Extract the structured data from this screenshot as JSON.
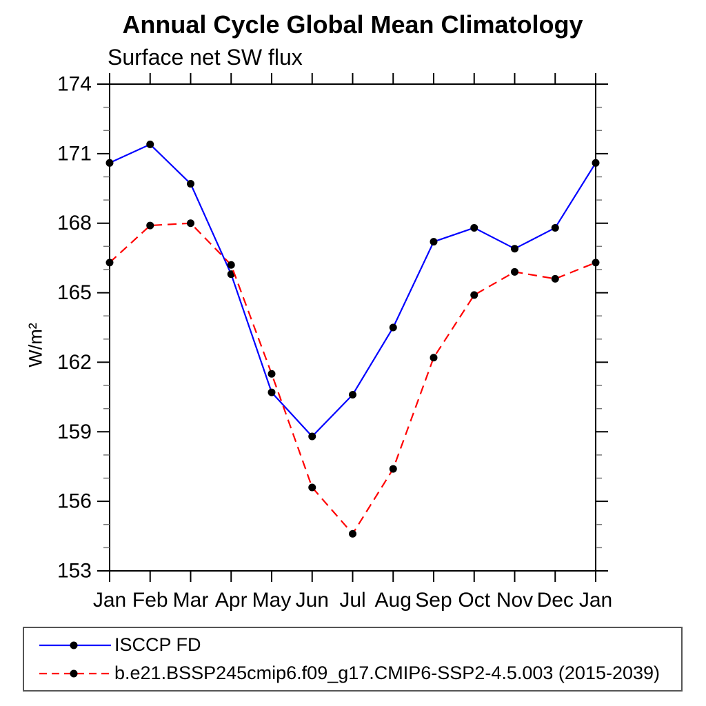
{
  "title": "Annual Cycle Global Mean Climatology",
  "subtitle": "Surface net SW flux",
  "y_axis_label": "W/m²",
  "chart_data": {
    "type": "line",
    "categories": [
      "Jan",
      "Feb",
      "Mar",
      "Apr",
      "May",
      "Jun",
      "Jul",
      "Aug",
      "Sep",
      "Oct",
      "Nov",
      "Dec",
      "Jan"
    ],
    "series": [
      {
        "name": "ISCCP FD",
        "color": "#0000ff",
        "line_style": "solid",
        "marker": "circle",
        "marker_color": "#000000",
        "values": [
          170.6,
          171.4,
          169.7,
          165.8,
          160.7,
          158.8,
          160.6,
          163.5,
          167.2,
          167.8,
          166.9,
          167.8,
          170.6
        ]
      },
      {
        "name": "b.e21.BSSP245cmip6.f09_g17.CMIP6-SSP2-4.5.003 (2015-2039)",
        "color": "#ff0000",
        "line_style": "dashed",
        "marker": "circle",
        "marker_color": "#000000",
        "values": [
          166.3,
          167.9,
          168.0,
          166.2,
          161.5,
          156.6,
          154.6,
          157.4,
          162.2,
          164.9,
          165.9,
          165.6,
          166.3
        ]
      }
    ],
    "ylim": [
      153,
      174
    ],
    "ytick_major_step": 3,
    "ytick_minor_step": 1,
    "ytick_labels": [
      "153",
      "156",
      "159",
      "162",
      "165",
      "168",
      "171",
      "174"
    ],
    "xlabel": "",
    "ylabel": "W/m²",
    "grid": false,
    "legend_position": "bottom-left-box"
  }
}
